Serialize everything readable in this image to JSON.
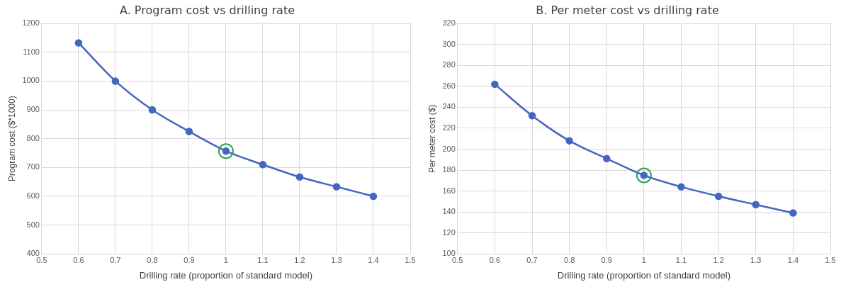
{
  "chart_data": [
    {
      "type": "line",
      "title": "A. Program cost vs drilling rate",
      "xlabel": "Drilling rate (proportion of standard model)",
      "ylabel": "Program cost ($*1000)",
      "x": [
        0.6,
        0.7,
        0.8,
        0.9,
        1,
        1.1,
        1.2,
        1.3,
        1.4
      ],
      "series": [
        {
          "color": "#4466c0",
          "values": [
            1133,
            1000,
            900,
            825,
            757,
            710,
            667,
            633,
            600
          ]
        },
        {
          "type": "scatter",
          "color": "#2ca05a",
          "x": [
            1
          ],
          "values": [
            757
          ]
        }
      ],
      "xlim": [
        0.5,
        1.5
      ],
      "xticks": [
        0.5,
        0.6,
        0.7,
        0.8,
        0.9,
        1,
        1.1,
        1.2,
        1.3,
        1.4,
        1.5
      ],
      "ylim": [
        400,
        1200
      ],
      "yticks": [
        400,
        500,
        600,
        700,
        800,
        900,
        1000,
        1100,
        1200
      ],
      "grid": true,
      "marker": "circle"
    },
    {
      "type": "line",
      "title": "B. Per meter cost vs drilling rate",
      "xlabel": "Drilling rate (proportion of standard model)",
      "ylabel": "Per meter cost ($)",
      "x": [
        0.6,
        0.7,
        0.8,
        0.9,
        1,
        1.1,
        1.2,
        1.3,
        1.4
      ],
      "series": [
        {
          "color": "#4466c0",
          "values": [
            262,
            232,
            208,
            191,
            175,
            164,
            155,
            147,
            139
          ]
        },
        {
          "type": "scatter",
          "color": "#2ca05a",
          "x": [
            1
          ],
          "values": [
            175
          ]
        }
      ],
      "xlim": [
        0.5,
        1.5
      ],
      "xticks": [
        0.5,
        0.6,
        0.7,
        0.8,
        0.9,
        1,
        1.1,
        1.2,
        1.3,
        1.4,
        1.5
      ],
      "ylim": [
        100,
        320
      ],
      "yticks": [
        100,
        120,
        140,
        160,
        180,
        200,
        220,
        240,
        260,
        280,
        300,
        320
      ],
      "grid": true,
      "marker": "circle"
    }
  ]
}
